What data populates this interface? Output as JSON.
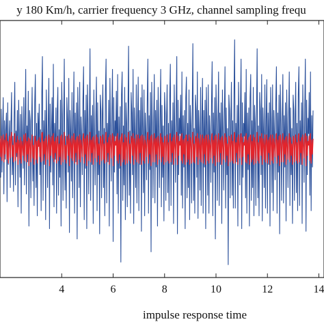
{
  "chart_data": {
    "type": "line",
    "title": "y 180 Km/h, carrier frequency 3 GHz, channel sampling frequ",
    "xlabel": "impulse  response  time",
    "ylabel": "",
    "xlim": [
      1.6,
      14.2
    ],
    "ylim": [
      -1.0,
      1.0
    ],
    "x_ticks": [
      4,
      6,
      8,
      10,
      12,
      14
    ],
    "x_tick_labels": [
      "4",
      "6",
      "8",
      "10",
      "12",
      "14"
    ],
    "grid": false,
    "legend": "none",
    "series": [
      {
        "color": "#2a4f9a",
        "x_start": 1.6,
        "x_step": 0.025,
        "values": [
          0.05,
          -0.22,
          0.31,
          -0.18,
          0.12,
          0.4,
          -0.35,
          0.22,
          -0.08,
          0.15,
          0.28,
          -0.41,
          0.36,
          -0.12,
          0.05,
          0.22,
          -0.3,
          0.18,
          0.44,
          -0.2,
          0.1,
          -0.33,
          0.25,
          0.52,
          -0.28,
          0.14,
          -0.06,
          0.3,
          -0.45,
          0.38,
          0.12,
          -0.22,
          0.27,
          -0.5,
          0.33,
          0.08,
          -0.15,
          0.4,
          -0.28,
          0.2,
          0.62,
          -0.35,
          0.18,
          -0.1,
          0.45,
          -0.6,
          0.3,
          0.22,
          -0.38,
          0.15,
          0.48,
          -0.25,
          0.1,
          -0.44,
          0.36,
          0.58,
          -0.3,
          0.2,
          -0.52,
          0.28,
          0.05,
          0.35,
          -0.2,
          0.15,
          -0.48,
          0.42,
          0.72,
          -0.4,
          0.22,
          -0.12,
          0.3,
          -0.55,
          0.46,
          0.1,
          -0.3,
          0.2,
          0.55,
          -0.62,
          0.35,
          -0.18,
          0.12,
          0.4,
          -0.28,
          0.66,
          -0.45,
          0.2,
          -0.08,
          0.32,
          -0.5,
          0.28,
          0.48,
          -0.36,
          0.15,
          -0.22,
          0.38,
          -0.6,
          0.52,
          0.25,
          -0.4,
          0.18,
          0.7,
          -0.32,
          0.1,
          -0.46,
          0.4,
          0.22,
          -0.18,
          0.55,
          -0.65,
          0.3,
          0.12,
          -0.25,
          0.44,
          -0.38,
          0.2,
          0.6,
          -0.5,
          0.28,
          -0.1,
          0.36,
          -0.7,
          0.48,
          0.18,
          -0.3,
          0.52,
          -0.45,
          0.25,
          0.08,
          -0.2,
          0.38,
          0.64,
          -0.55,
          0.3,
          -0.15,
          0.42,
          -0.62,
          0.5,
          0.2,
          -0.35,
          0.15,
          0.78,
          -0.4,
          0.26,
          -0.12,
          0.34,
          -0.58,
          0.46,
          0.1,
          -0.28,
          0.22,
          0.56,
          -0.48,
          0.36,
          -0.2,
          0.14,
          -0.66,
          0.42,
          0.3,
          -0.38,
          0.24,
          0.5,
          -0.3,
          0.16,
          -0.52,
          0.45,
          0.7,
          -0.42,
          0.2,
          -0.1,
          0.38,
          -0.6,
          0.55,
          0.12,
          -0.25,
          0.3,
          0.62,
          -0.72,
          0.4,
          -0.18,
          0.22,
          0.1,
          0.45,
          -0.35,
          0.58,
          -0.5,
          0.25,
          -0.15,
          0.33,
          -0.88,
          0.42,
          0.6,
          -0.4,
          0.18,
          -0.28,
          0.48,
          -0.55,
          0.36,
          0.2,
          -0.45,
          0.26,
          0.8,
          -0.36,
          0.14,
          -0.5,
          0.44,
          0.28,
          -0.2,
          0.62,
          -0.58,
          0.32,
          0.1,
          -0.3,
          0.5,
          -0.42,
          0.22,
          0.56,
          -0.48,
          0.3,
          -0.12,
          0.4,
          -0.64,
          0.5,
          0.16,
          -0.34,
          0.46,
          -0.52,
          0.28,
          0.12,
          -0.24,
          0.36,
          0.7,
          -0.5,
          0.26,
          -0.16,
          0.44,
          -0.8,
          0.52,
          0.18,
          -0.38,
          0.2,
          0.58,
          -0.42,
          0.3,
          -0.14,
          0.38,
          -0.6,
          0.48,
          0.14,
          -0.3,
          0.24,
          0.62,
          -0.45,
          0.34,
          -0.22,
          0.18,
          -0.56,
          0.44,
          0.28,
          -0.4,
          0.22,
          0.5,
          -0.34,
          0.2,
          -0.48,
          0.4,
          0.66,
          -0.44,
          0.22,
          -0.12,
          0.36,
          -0.58,
          0.5,
          0.1,
          -0.26,
          0.3,
          0.72,
          -0.66,
          0.38,
          -0.2,
          0.24,
          0.12,
          0.42,
          -0.36,
          0.6,
          -0.46,
          0.26,
          -0.14,
          0.3,
          -0.62,
          0.4,
          0.56,
          -0.38,
          0.2,
          -0.3,
          0.46,
          -0.55,
          0.34,
          0.18,
          -0.42,
          0.28,
          0.82,
          -0.4,
          0.16,
          -0.5,
          0.42,
          0.3,
          -0.22,
          0.6,
          -0.54,
          0.3,
          0.12,
          -0.32,
          0.48,
          -0.44,
          0.2,
          0.55,
          -0.5,
          0.3,
          -0.14,
          0.38,
          -0.62,
          0.48,
          0.18,
          -0.36,
          0.5,
          -0.5,
          0.26,
          0.1,
          -0.26,
          0.34,
          0.68,
          -0.52,
          0.28,
          -0.18,
          0.4,
          -0.7,
          0.5,
          0.22,
          -0.4,
          0.2,
          0.6,
          -0.44,
          0.28,
          -0.12,
          0.36,
          -0.58,
          0.46,
          0.12,
          -0.32,
          0.26,
          0.64,
          -0.46,
          0.32,
          -0.2,
          0.16,
          -0.9,
          0.42,
          0.3,
          -0.38,
          0.22,
          0.52,
          -0.36,
          0.22,
          -0.46,
          0.42,
          0.85,
          -0.46,
          0.2,
          -0.1,
          0.34,
          -0.6,
          0.52,
          0.14,
          -0.28,
          0.32,
          0.7,
          -0.62,
          0.36,
          -0.22,
          0.2,
          0.1,
          0.44,
          -0.38,
          0.62,
          -0.5,
          0.28,
          -0.16,
          0.32,
          -0.6,
          0.4,
          0.58,
          -0.4,
          0.22,
          -0.3,
          0.48,
          -0.52,
          0.34,
          0.2,
          -0.44,
          0.26,
          0.78,
          -0.38,
          0.18,
          -0.52,
          0.44,
          0.3,
          -0.2,
          0.58,
          -0.56,
          0.32,
          0.12,
          -0.3,
          0.5,
          -0.46,
          0.22,
          0.54,
          -0.5,
          0.28,
          -0.12,
          0.36,
          -0.6,
          0.48,
          0.2,
          -0.34,
          0.5,
          -0.48,
          0.3,
          0.1,
          -0.24,
          0.36,
          0.64,
          -0.5,
          0.28,
          -0.18,
          0.42,
          -0.66,
          0.5,
          0.2,
          -0.4,
          0.22,
          0.58,
          -0.42,
          0.26,
          -0.14,
          0.36,
          -0.56,
          0.46,
          0.12,
          -0.3,
          0.24,
          0.6,
          -0.44,
          0.32,
          -0.2,
          0.16,
          -0.58,
          0.42,
          0.3,
          -0.4,
          0.22,
          0.52,
          -0.34,
          0.2,
          -0.48,
          0.42,
          0.64,
          -0.44,
          0.22,
          -0.12,
          0.36,
          -0.58,
          0.5,
          0.12,
          -0.26,
          0.3,
          0.7,
          -0.64,
          0.38,
          -0.2,
          0.24,
          0.12,
          0.44,
          -0.36,
          0.6,
          -0.48,
          0.26,
          -0.14,
          0.3
        ]
      },
      {
        "color": "#e3242b",
        "x_start": 1.6,
        "x_step": 0.025,
        "values": [
          0.08,
          -0.06,
          0.1,
          -0.09,
          0.05,
          0.11,
          -0.1,
          0.07,
          -0.04,
          0.09,
          0.12,
          -0.08,
          0.06,
          -0.11,
          0.04,
          0.1,
          -0.07,
          0.09,
          0.13,
          -0.06,
          0.03,
          -0.1,
          0.08,
          0.12,
          -0.09,
          0.05,
          -0.03,
          0.1,
          -0.12,
          0.07,
          0.04,
          -0.08,
          0.09,
          -0.11,
          0.06,
          0.02,
          -0.05,
          0.11,
          -0.09,
          0.07,
          0.12,
          -0.1,
          0.06,
          -0.04,
          0.09,
          -0.13,
          0.08,
          0.05,
          -0.1,
          0.04,
          0.11,
          -0.07,
          0.03,
          -0.12,
          0.09,
          0.1,
          -0.08,
          0.06,
          -0.11,
          0.07,
          0.02,
          0.09,
          -0.06,
          0.05,
          -0.1,
          0.12,
          0.13,
          -0.09,
          0.06,
          -0.04,
          0.08,
          -0.12,
          0.1,
          0.03,
          -0.08,
          0.05,
          0.11,
          -0.13,
          0.09,
          -0.05,
          0.04,
          0.1,
          -0.07,
          0.12,
          -0.1,
          0.06,
          -0.03,
          0.09,
          -0.11,
          0.07,
          0.1,
          -0.09,
          0.04,
          -0.06,
          0.1,
          -0.12,
          0.11,
          0.06,
          -0.1,
          0.05,
          0.13,
          -0.08,
          0.03,
          -0.11,
          0.1,
          0.06,
          -0.05,
          0.11,
          -0.13,
          0.08,
          0.04,
          -0.07,
          0.1,
          -0.09,
          0.06,
          0.12,
          -0.11,
          0.07,
          -0.03,
          0.09,
          -0.12,
          0.1,
          0.05,
          -0.08,
          0.11,
          -0.1,
          0.07,
          0.02,
          -0.06,
          0.09,
          0.12,
          -0.11,
          0.08,
          -0.04,
          0.1,
          -0.13,
          0.11,
          0.05,
          -0.09,
          0.04,
          0.13,
          -0.1,
          0.07,
          -0.03,
          0.09,
          -0.12,
          0.1,
          0.03,
          -0.07,
          0.06,
          0.11,
          -0.1,
          0.09,
          -0.05,
          0.04,
          -0.12,
          0.1,
          0.08,
          -0.09,
          0.06,
          0.11,
          -0.08,
          0.04,
          -0.11,
          0.1,
          0.13,
          -0.1,
          0.05,
          -0.03,
          0.09,
          -0.12,
          0.11,
          0.04,
          -0.07,
          0.08,
          0.12,
          -0.13,
          0.1,
          -0.05,
          0.06,
          0.03,
          0.1,
          -0.09,
          0.12,
          -0.11,
          0.07,
          -0.04,
          0.09,
          -0.13,
          0.1,
          0.12,
          -0.1,
          0.05,
          -0.08,
          0.11,
          -0.12,
          0.09,
          0.05,
          -0.11,
          0.07,
          0.13,
          -0.09,
          0.04,
          -0.11,
          0.1,
          0.08,
          -0.05,
          0.12,
          -0.12,
          0.08,
          0.03,
          -0.08,
          0.11,
          -0.1,
          0.06,
          0.11,
          -0.11,
          0.08,
          -0.03,
          0.1,
          -0.12,
          0.11,
          0.04,
          -0.09,
          0.1,
          -0.11,
          0.07,
          0.03,
          -0.06,
          0.09,
          0.13,
          -0.11,
          0.07,
          -0.04,
          0.1,
          -0.13,
          0.11,
          0.05,
          -0.1,
          0.05,
          0.12,
          -0.1,
          0.08,
          -0.04,
          0.09,
          -0.12,
          0.1,
          0.04,
          -0.08,
          0.06,
          0.12,
          -0.1,
          0.09,
          -0.06,
          0.05,
          -0.12,
          0.1,
          0.07,
          -0.1,
          0.06,
          0.11,
          -0.09,
          0.05,
          -0.11,
          0.1,
          0.12,
          -0.1,
          0.06,
          -0.03,
          0.09,
          -0.12,
          0.11,
          0.03,
          -0.07,
          0.08,
          0.13,
          -0.12,
          0.1,
          -0.05,
          0.06,
          0.03,
          0.1,
          -0.09,
          0.12,
          -0.11,
          0.07,
          -0.04,
          0.08,
          -0.12,
          0.1,
          0.11,
          -0.1,
          0.06,
          -0.08,
          0.11,
          -0.12,
          0.09,
          0.05,
          -0.11,
          0.07,
          0.13,
          -0.1,
          0.04,
          -0.11,
          0.1,
          0.08,
          -0.06,
          0.12,
          -0.12,
          0.08,
          0.03,
          -0.08,
          0.11,
          -0.1,
          0.05,
          0.11,
          -0.11,
          0.08,
          -0.04,
          0.1,
          -0.12,
          0.11,
          0.05,
          -0.09,
          0.11,
          -0.11,
          0.07,
          0.03,
          -0.07,
          0.09,
          0.12,
          -0.11,
          0.07,
          -0.05,
          0.1,
          -0.13,
          0.11,
          0.06,
          -0.1,
          0.05,
          0.12,
          -0.1,
          0.07,
          -0.03,
          0.09,
          -0.12,
          0.1,
          0.03,
          -0.08,
          0.07,
          0.12,
          -0.1,
          0.09,
          -0.05,
          0.04,
          -0.13,
          0.1,
          0.08,
          -0.1,
          0.06,
          0.11,
          -0.09,
          0.06,
          -0.11,
          0.1,
          0.13,
          -0.11,
          0.05,
          -0.03,
          0.09,
          -0.12,
          0.11,
          0.04,
          -0.07,
          0.08,
          0.12,
          -0.12,
          0.09,
          -0.06,
          0.05,
          0.03,
          0.1,
          -0.1,
          0.12,
          -0.11,
          0.07,
          -0.04,
          0.09,
          -0.12,
          0.1,
          0.11,
          -0.1,
          0.06,
          -0.08,
          0.11,
          -0.12,
          0.09,
          0.05,
          -0.11,
          0.07,
          0.13,
          -0.09,
          0.05,
          -0.11,
          0.1,
          0.08,
          -0.05,
          0.12,
          -0.12,
          0.08,
          0.03,
          -0.08,
          0.11,
          -0.1,
          0.06,
          0.11,
          -0.11,
          0.07,
          -0.03,
          0.09,
          -0.12,
          0.11,
          0.05,
          -0.09,
          0.11,
          -0.11,
          0.08,
          0.03,
          -0.06,
          0.09,
          0.12,
          -0.11,
          0.07,
          -0.05,
          0.1,
          -0.13,
          0.11,
          0.05,
          -0.1,
          0.06,
          0.12,
          -0.1,
          0.07,
          -0.04,
          0.09,
          -0.12,
          0.1,
          0.03,
          -0.08,
          0.06,
          0.12,
          -0.1,
          0.09,
          -0.05,
          0.04,
          -0.12,
          0.1,
          0.08,
          -0.1,
          0.06,
          0.11,
          -0.09,
          0.05,
          -0.11,
          0.1,
          0.12,
          -0.1,
          0.06,
          -0.03,
          0.09,
          -0.12,
          0.11,
          0.03,
          -0.07,
          0.08,
          0.12,
          -0.13,
          0.1,
          -0.05,
          0.06,
          0.03,
          0.1,
          -0.09,
          0.12,
          -0.11,
          0.07,
          -0.04,
          0.08
        ]
      }
    ]
  }
}
